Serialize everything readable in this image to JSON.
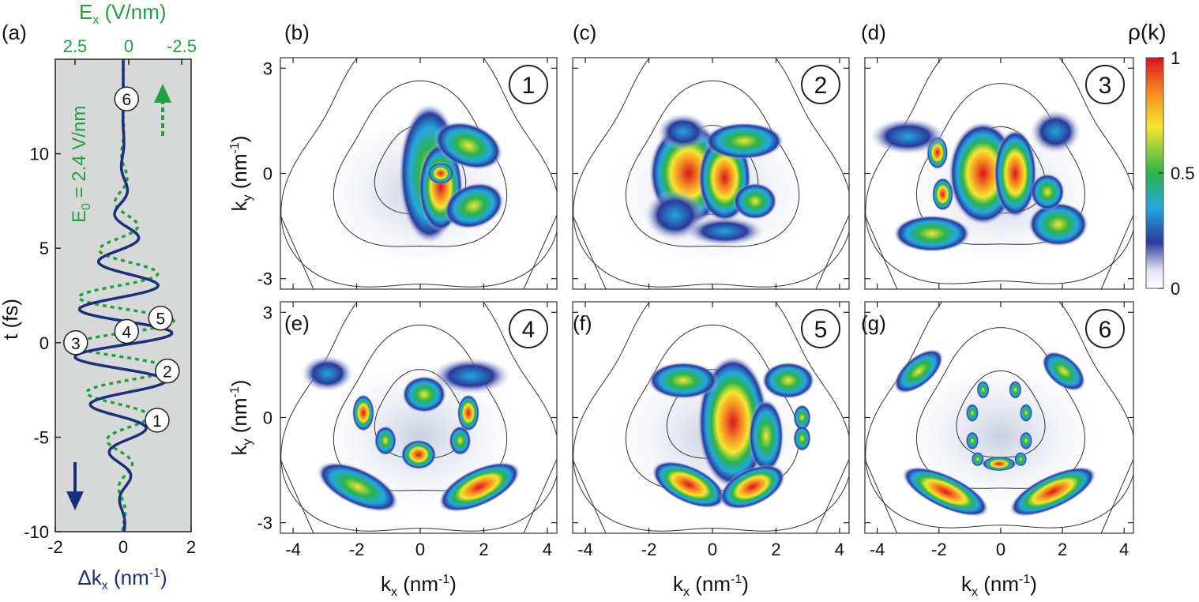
{
  "figure": {
    "panel_a": {
      "label": "(a)",
      "top_axis": {
        "label_main": "E",
        "label_sub": "x",
        "label_unit": " (V/nm)",
        "ticks": [
          "2.5",
          "0",
          "-2.5"
        ],
        "values": [
          2.5,
          0,
          -2.5
        ],
        "color": "#20a040"
      },
      "bottom_axis": {
        "label_pre": "Δk",
        "label_sub": "x",
        "label_unit_a": " (nm",
        "label_sup": "-1",
        "label_unit_b": ")",
        "ticks": [
          "-2",
          "0",
          "2"
        ],
        "values": [
          -2,
          0,
          2
        ],
        "color": "#1b2f7a"
      },
      "left_axis": {
        "label": "t (fs)",
        "ticks": [
          "-10",
          "-5",
          "0",
          "5",
          "10"
        ],
        "values": [
          -10,
          -5,
          0,
          5,
          10
        ]
      },
      "field_annotation": {
        "pre": "E",
        "sub": "0",
        "post": " = 2.4 V/nm"
      },
      "markers": [
        {
          "label": "1",
          "t": -4.1,
          "dk": 1.0
        },
        {
          "label": "2",
          "t": -1.5,
          "dk": 1.3
        },
        {
          "label": "3",
          "t": 0.0,
          "dk": -1.4
        },
        {
          "label": "4",
          "t": 0.6,
          "dk": 0.1
        },
        {
          "label": "5",
          "t": 1.3,
          "dk": 1.1
        },
        {
          "label": "6",
          "t": 12.9,
          "dk": 0.1
        }
      ],
      "bg_color": "#d7d8d8",
      "line_color": "#1b2f7a",
      "field_color": "#20a040"
    },
    "density_panels": [
      {
        "label": "(b)",
        "number": "1"
      },
      {
        "label": "(c)",
        "number": "2"
      },
      {
        "label": "(d)",
        "number": "3"
      },
      {
        "label": "(e)",
        "number": "4"
      },
      {
        "label": "(f)",
        "number": "5"
      },
      {
        "label": "(g)",
        "number": "6"
      }
    ],
    "kx_axis": {
      "pre": "k",
      "sub": "x",
      "unit_a": " (nm",
      "sup": "-1",
      "unit_b": ")",
      "ticks": [
        "-4",
        "-2",
        "0",
        "2",
        "4"
      ],
      "values": [
        -4,
        -2,
        0,
        2,
        4
      ]
    },
    "ky_axis": {
      "pre": "k",
      "sub": "y",
      "unit_a": " (nm",
      "sup": "-1",
      "unit_b": ")",
      "ticks": [
        "3",
        "0",
        "-3"
      ],
      "values": [
        3,
        0,
        -3
      ]
    },
    "colorbar": {
      "label": "ρ(k)",
      "ticks": [
        "1",
        "0.5",
        "0"
      ],
      "values": [
        1,
        0.5,
        0
      ]
    }
  }
}
